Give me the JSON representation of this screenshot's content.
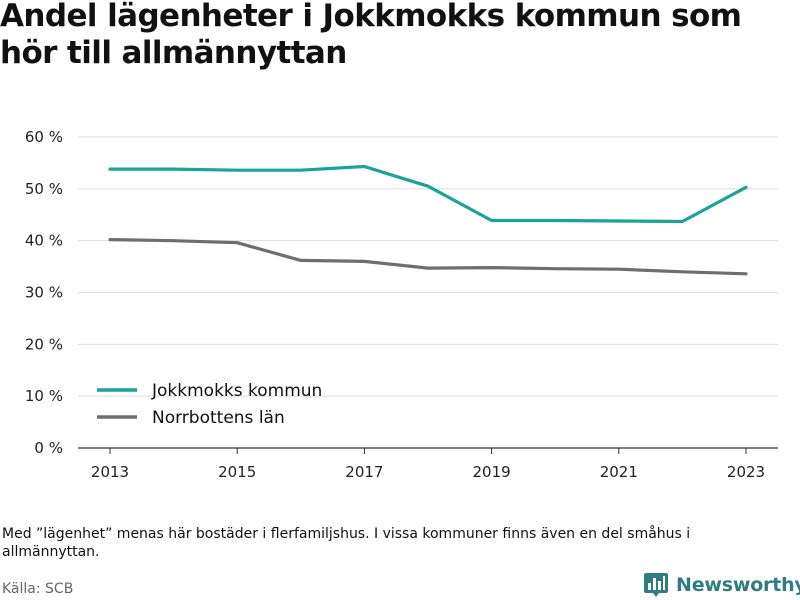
{
  "title": "Andel lägenheter i Jokkmokks kommun som hör till allmännyttan",
  "footnote": "Med ”lägenhet” menas här bostäder i flerfamiljshus. I vissa kommuner finns även en del småhus i allmännyttan.",
  "source": "Källa: SCB",
  "brand": {
    "name": "Newsworthy",
    "icon": "bar-chart-logo-icon",
    "color": "#2f7d82"
  },
  "chart_data": {
    "type": "line",
    "x": [
      2013,
      2014,
      2015,
      2016,
      2017,
      2018,
      2019,
      2020,
      2021,
      2022,
      2023
    ],
    "series": [
      {
        "name": "Jokkmokks kommun",
        "color": "#1aa39a",
        "values": [
          53.8,
          53.8,
          53.6,
          53.6,
          54.3,
          50.5,
          43.9,
          43.9,
          43.8,
          43.7,
          50.3
        ]
      },
      {
        "name": "Norrbottens län",
        "color": "#6e6e70",
        "values": [
          40.2,
          40.0,
          39.6,
          36.2,
          36.0,
          34.7,
          34.8,
          34.6,
          34.5,
          34.0,
          33.6
        ]
      }
    ],
    "x_ticks": [
      2013,
      2015,
      2017,
      2019,
      2021,
      2023
    ],
    "y_ticks": [
      0,
      10,
      20,
      30,
      40,
      50,
      60
    ],
    "y_tick_suffix": " %",
    "ylim": [
      0,
      60
    ],
    "xlim": [
      2013,
      2023
    ],
    "grid": "horizontal",
    "legend_position": "bottom-left"
  }
}
